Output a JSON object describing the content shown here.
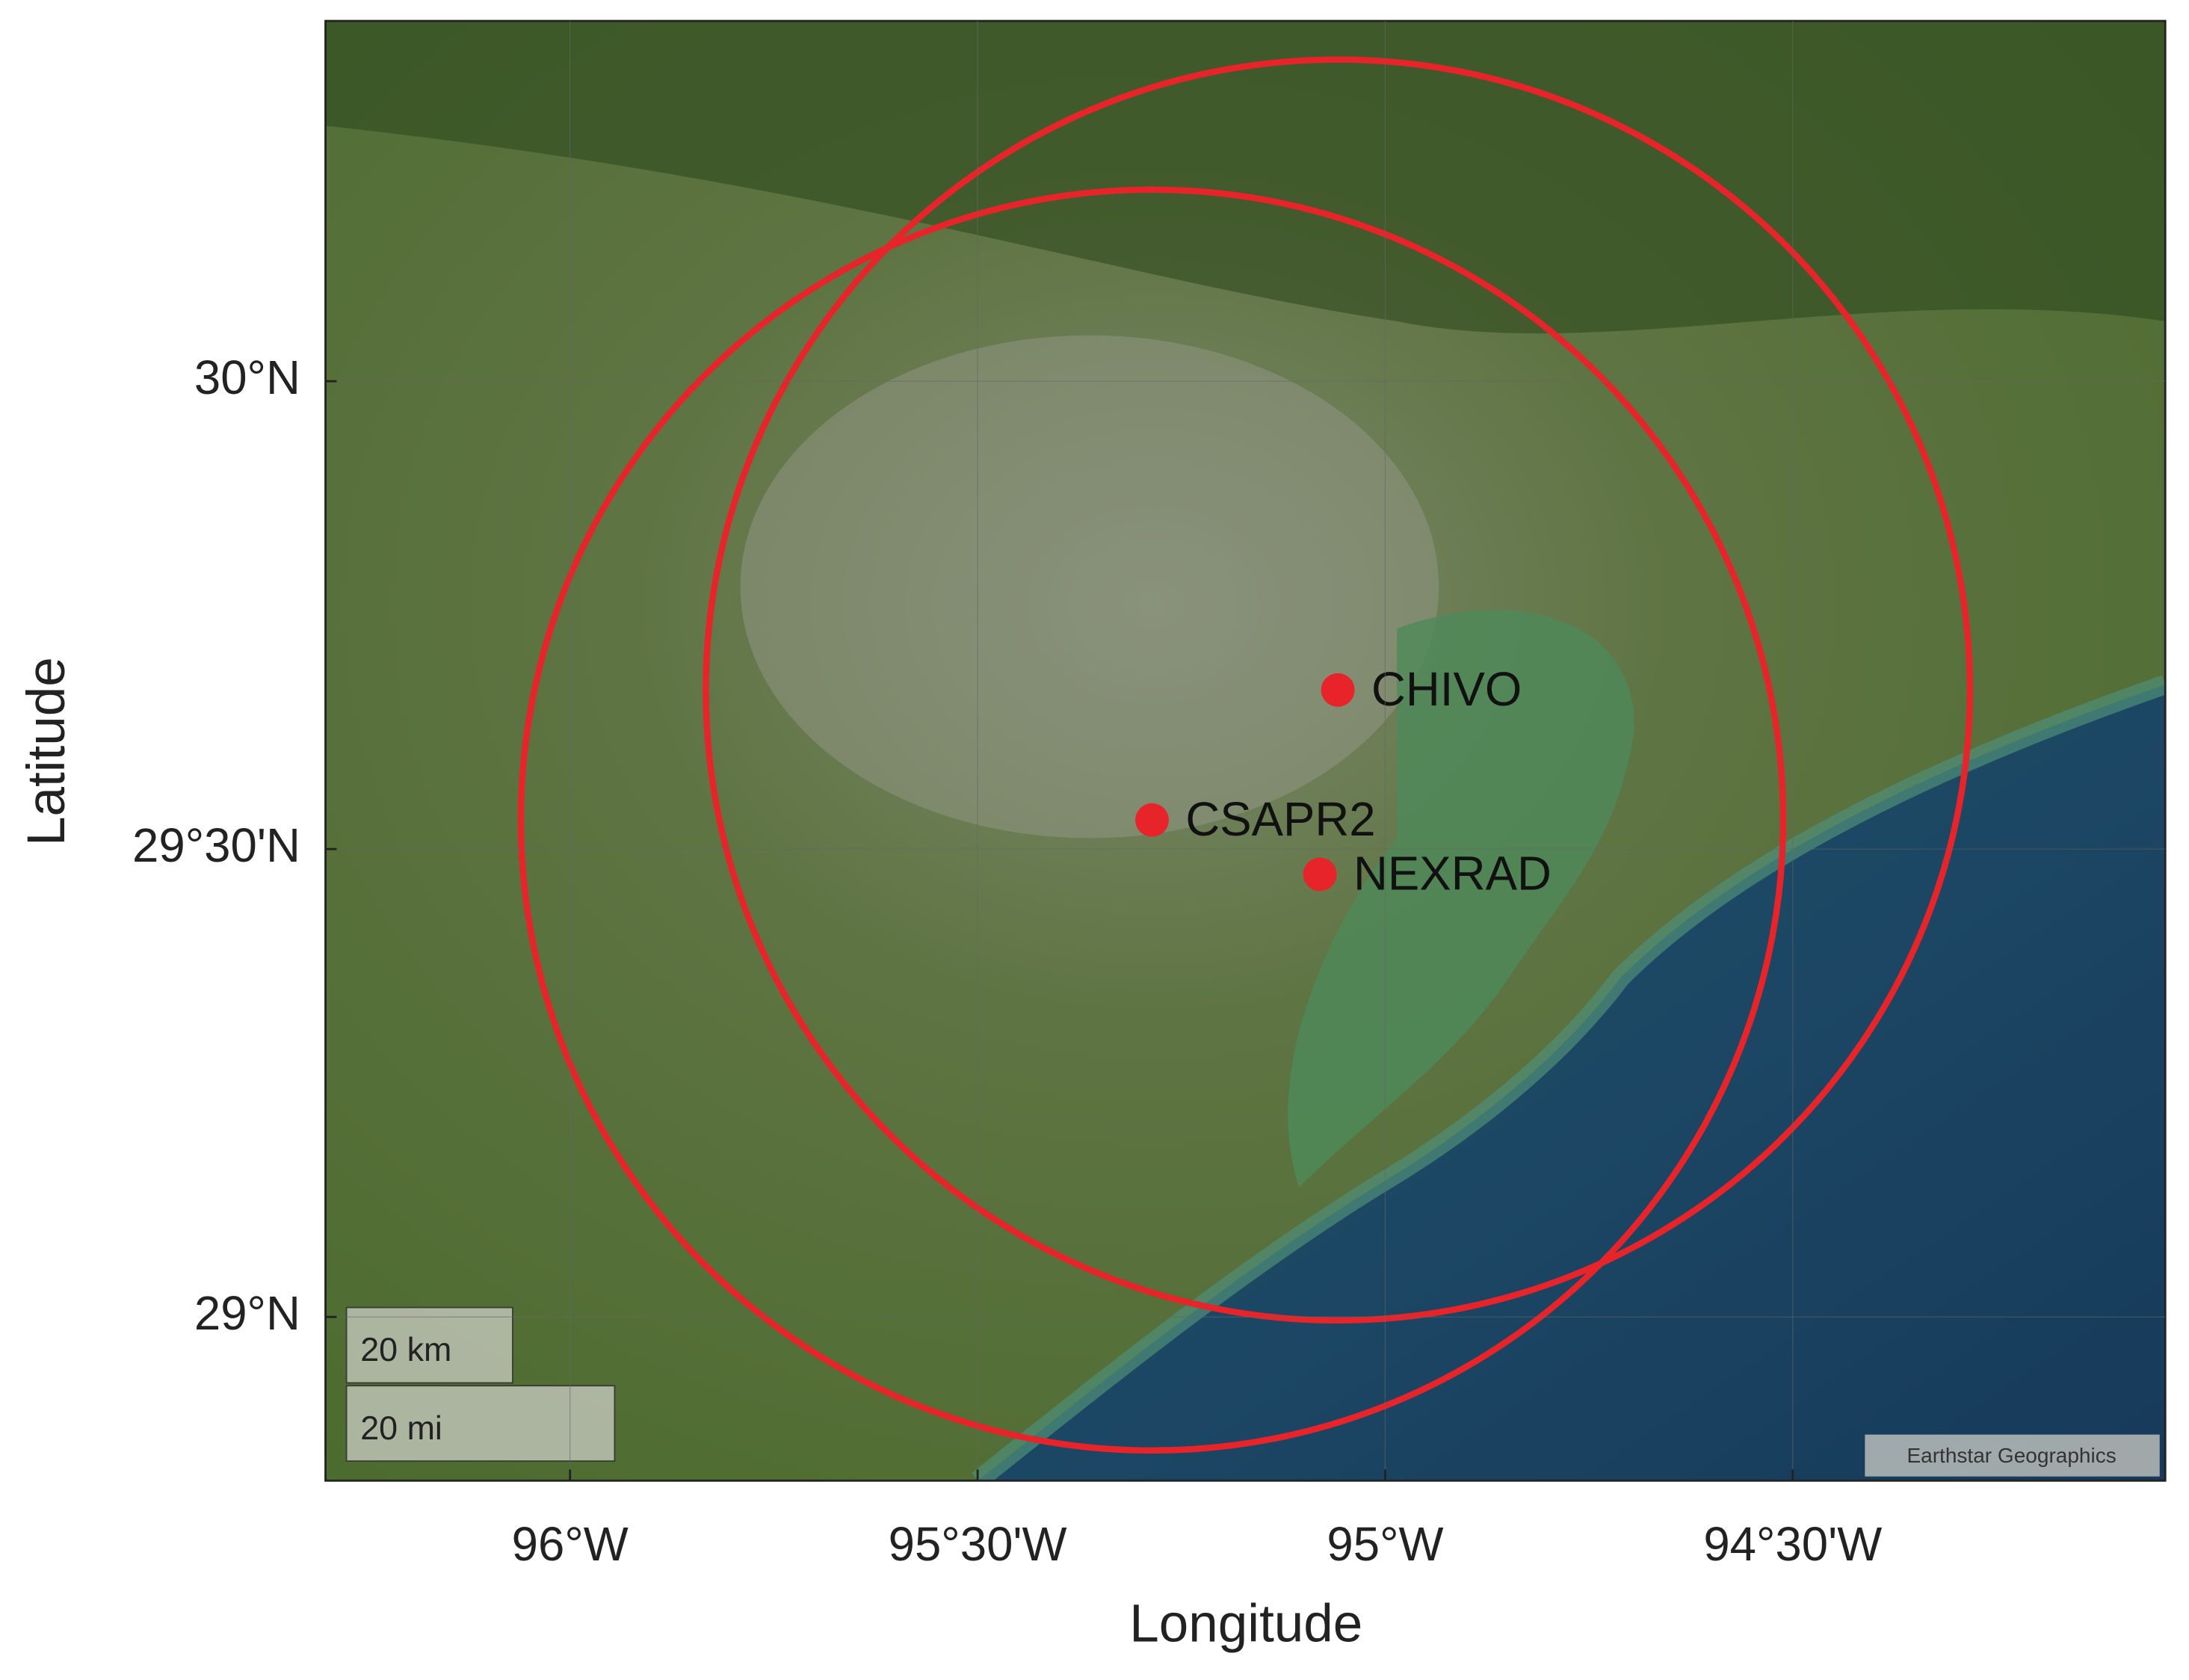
{
  "chart_data": {
    "type": "map",
    "xlabel": "Longitude",
    "ylabel": "Latitude",
    "xlim": [
      -96.3,
      -94.043
    ],
    "ylim": [
      28.825,
      30.385
    ],
    "xticks": [
      {
        "value": -96,
        "label": "96°W"
      },
      {
        "value": -95.5,
        "label": "95°30'W"
      },
      {
        "value": -95,
        "label": "95°W"
      },
      {
        "value": -94.5,
        "label": "94°30'W"
      }
    ],
    "yticks": [
      {
        "value": 29,
        "label": "29°N"
      },
      {
        "value": 29.5,
        "label": "29°30'N"
      },
      {
        "value": 30,
        "label": "30°N"
      }
    ],
    "color": "#e8242b",
    "sites": [
      {
        "name": "CHIVO",
        "lon": -95.058,
        "lat": 29.67,
        "range_km": 75
      },
      {
        "name": "CSAPR2",
        "lon": -95.286,
        "lat": 29.531,
        "range_km": 75
      },
      {
        "name": "NEXRAD",
        "lon": -95.08,
        "lat": 29.473
      }
    ],
    "scale_bar": [
      "20 km",
      "20 mi"
    ],
    "attribution": "Earthstar Geographics"
  }
}
